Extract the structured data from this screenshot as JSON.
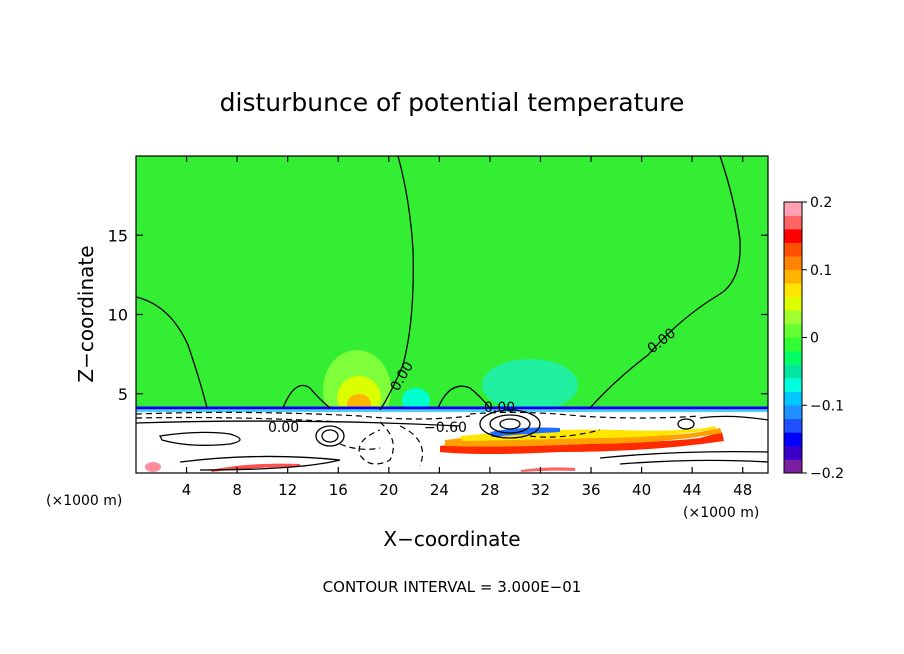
{
  "chart_data": {
    "type": "heatmap",
    "title": "disturbunce of potential temperature",
    "xlabel": "X−coordinate",
    "ylabel": "Z−coordinate",
    "x_unit_left": "(×1000 m)",
    "x_unit_right": "(×1000 m)",
    "xlim": [
      0,
      50
    ],
    "ylim": [
      0,
      20
    ],
    "x_ticks": [
      4,
      8,
      12,
      16,
      20,
      24,
      28,
      32,
      36,
      40,
      44,
      48
    ],
    "y_ticks": [
      5,
      10,
      15
    ],
    "footer": "CONTOUR INTERVAL = 3.000E−01",
    "colorbar": {
      "range": [
        -0.2,
        0.2
      ],
      "tick_labels": [
        "0.2",
        "0.1",
        "0",
        "−0.1",
        "−0.2"
      ],
      "tick_values": [
        0.2,
        0.1,
        0,
        -0.1,
        -0.2
      ],
      "colors": [
        "#7b1fa2",
        "#3a00c8",
        "#0000ff",
        "#1e50ff",
        "#1e90ff",
        "#00c8ff",
        "#00ffdc",
        "#00e6a0",
        "#00ff64",
        "#32ff32",
        "#64ff32",
        "#a0ff32",
        "#dcff00",
        "#ffe600",
        "#ffb400",
        "#ff8200",
        "#ff5000",
        "#ff0000",
        "#ff6464",
        "#ffa0b4"
      ]
    },
    "contour_labels": [
      "0.00",
      "0.00",
      "0.00",
      "0.00",
      "−0.60"
    ],
    "background_color": "#33ee33"
  }
}
